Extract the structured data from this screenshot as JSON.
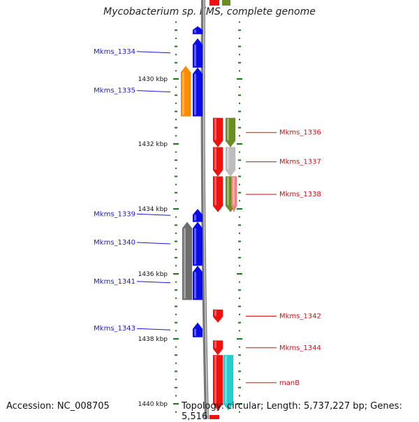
{
  "title": "Mycobacterium sp. KMS, complete genome",
  "footer": {
    "accession": "Accession: NC_008705",
    "topology": "Topology: circular; Length: 5,737,227 bp; Genes: 5,516"
  },
  "colors": {
    "blue": "#0a0af0",
    "red": "#f01010",
    "orange": "#ff8c00",
    "gray": "#6e6e6e",
    "olive": "#6b8e23",
    "silver": "#bdbdbd",
    "pink": "#f08080",
    "cyan": "#20d0d0",
    "tick": "#1a7a1a"
  },
  "map": {
    "start_kbp": 1428.3,
    "end_kbp": 1440,
    "major_ticks_kbp": [
      1430,
      1432,
      1434,
      1436,
      1438,
      1440
    ],
    "major_tick_labels": [
      "1430 kbp",
      "1432 kbp",
      "1434 kbp",
      "1436 kbp",
      "1438 kbp",
      "1440 kbp"
    ]
  },
  "genes": [
    {
      "name": "Mkms_1334",
      "strand": "forward",
      "color": "blue",
      "start_kbp": 1428.75,
      "end_kbp": 1429.65,
      "labeled": true
    },
    {
      "name": "Mkms_1335",
      "strand": "forward",
      "color": "blue",
      "start_kbp": 1429.65,
      "end_kbp": 1431.15,
      "labeled": true
    },
    {
      "name": "",
      "strand": "forward",
      "color": "blue",
      "start_kbp": 1428.38,
      "end_kbp": 1428.62,
      "labeled": false
    },
    {
      "name": "",
      "strand": "forward",
      "color": "orange",
      "start_kbp": 1429.6,
      "end_kbp": 1431.15,
      "labeled": false
    },
    {
      "name": "Mkms_1336",
      "strand": "reverse",
      "color": "red",
      "start_kbp": 1431.2,
      "end_kbp": 1432.1,
      "labeled": true
    },
    {
      "name": "Mkms_1337",
      "strand": "reverse",
      "color": "red",
      "start_kbp": 1432.1,
      "end_kbp": 1433.0,
      "labeled": true
    },
    {
      "name": "Mkms_1338",
      "strand": "reverse",
      "color": "red",
      "start_kbp": 1433.0,
      "end_kbp": 1434.1,
      "labeled": true
    },
    {
      "name": "",
      "strand": "reverse",
      "color": "olive",
      "start_kbp": 1431.2,
      "end_kbp": 1432.1,
      "labeled": false
    },
    {
      "name": "",
      "strand": "reverse",
      "color": "silver",
      "start_kbp": 1432.1,
      "end_kbp": 1433.0,
      "labeled": false
    },
    {
      "name": "",
      "strand": "reverse",
      "color": "olive",
      "start_kbp": 1433.0,
      "end_kbp": 1434.1,
      "labeled": false
    },
    {
      "name": "",
      "strand": "reverse",
      "color": "pink",
      "start_kbp": 1433.0,
      "end_kbp": 1434.1,
      "labeled": false
    },
    {
      "name": "Mkms_1339",
      "strand": "forward",
      "color": "blue",
      "start_kbp": 1434.0,
      "end_kbp": 1434.4,
      "labeled": true
    },
    {
      "name": "Mkms_1340",
      "strand": "forward",
      "color": "blue",
      "start_kbp": 1434.4,
      "end_kbp": 1435.75,
      "labeled": true
    },
    {
      "name": "Mkms_1341",
      "strand": "forward",
      "color": "blue",
      "start_kbp": 1435.75,
      "end_kbp": 1436.8,
      "labeled": true
    },
    {
      "name": "",
      "strand": "forward",
      "color": "gray",
      "start_kbp": 1434.4,
      "end_kbp": 1436.8,
      "labeled": false
    },
    {
      "name": "Mkms_1342",
      "strand": "reverse",
      "color": "red",
      "start_kbp": 1437.1,
      "end_kbp": 1437.5,
      "labeled": true
    },
    {
      "name": "Mkms_1343",
      "strand": "forward",
      "color": "blue",
      "start_kbp": 1437.5,
      "end_kbp": 1437.95,
      "labeled": true
    },
    {
      "name": "Mkms_1344",
      "strand": "reverse",
      "color": "red",
      "start_kbp": 1438.05,
      "end_kbp": 1438.5,
      "labeled": true
    },
    {
      "name": "manB",
      "strand": "reverse",
      "color": "red",
      "start_kbp": 1438.5,
      "end_kbp": 1440.2,
      "labeled": true
    },
    {
      "name": "",
      "strand": "reverse",
      "color": "cyan",
      "start_kbp": 1438.5,
      "end_kbp": 1440.2,
      "labeled": false
    }
  ]
}
